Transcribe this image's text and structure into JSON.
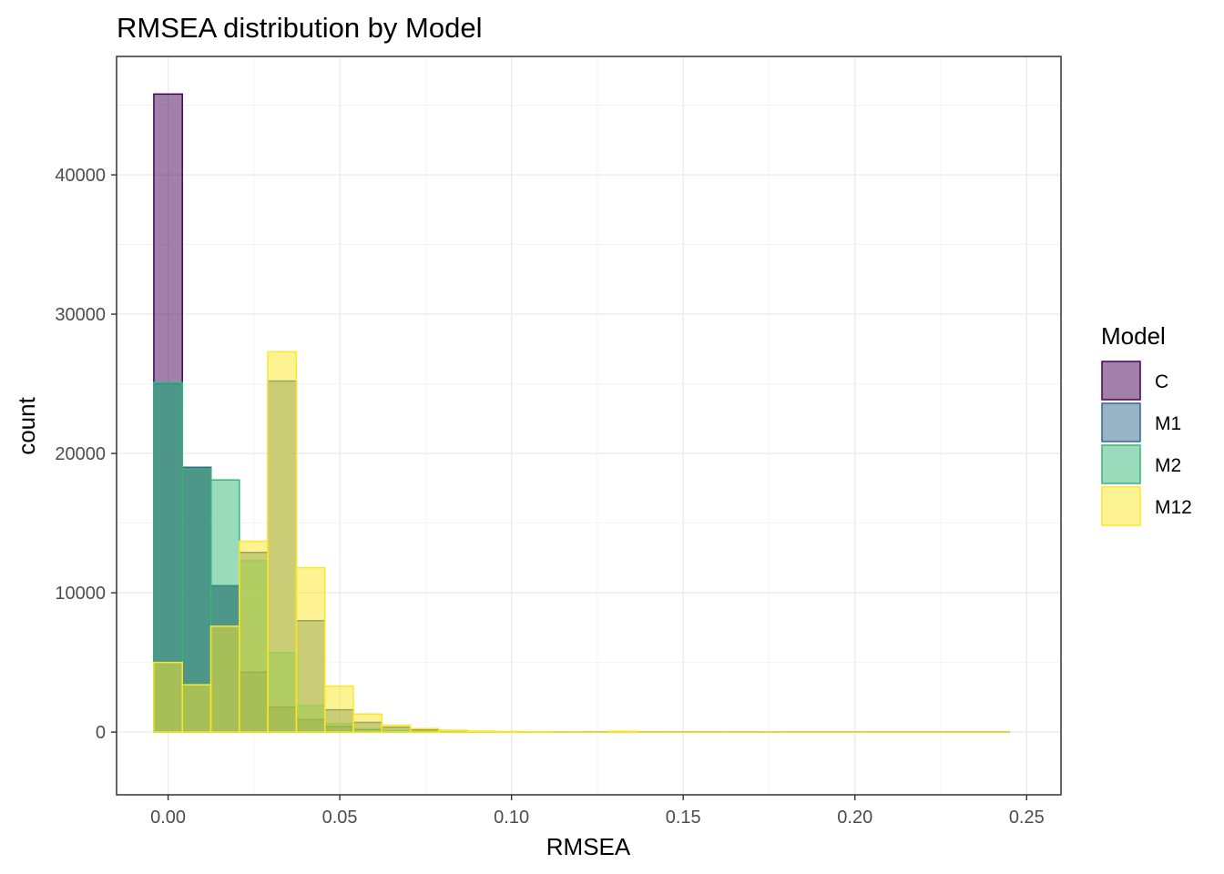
{
  "chart_data": {
    "type": "bar",
    "title": "RMSEA distribution by Model",
    "xlabel": "RMSEA",
    "ylabel": "count",
    "xlim": [
      -0.015,
      0.26
    ],
    "ylim": [
      -4500,
      48500
    ],
    "x_ticks": [
      0.0,
      0.05,
      0.1,
      0.15,
      0.2,
      0.25
    ],
    "x_tick_labels": [
      "0.00",
      "0.05",
      "0.10",
      "0.15",
      "0.20",
      "0.25"
    ],
    "y_ticks": [
      0,
      10000,
      20000,
      30000,
      40000
    ],
    "y_tick_labels": [
      "0",
      "10000",
      "20000",
      "30000",
      "40000"
    ],
    "grid": true,
    "legend": {
      "title": "Model",
      "placement": "right"
    },
    "bin_width": 0.0083,
    "bin_centers": [
      0.0,
      0.0083,
      0.0166,
      0.0249,
      0.0332,
      0.0415,
      0.0498,
      0.0581,
      0.0664,
      0.0747,
      0.083,
      0.0913,
      0.0996,
      0.1079,
      0.1162,
      0.1245,
      0.1328,
      0.1411,
      0.1494,
      0.1577,
      0.166,
      0.1743,
      0.1826,
      0.1909,
      0.1992,
      0.2075,
      0.2158,
      0.2241,
      0.2324,
      0.2407
    ],
    "series": [
      {
        "name": "C",
        "fill": "#440154",
        "stroke": "#440154",
        "values": [
          45800,
          19000,
          10500,
          4300,
          1800,
          900,
          400,
          200,
          120,
          70,
          40,
          25,
          15,
          10,
          8,
          6,
          5,
          4,
          3,
          2,
          2,
          1,
          1,
          1,
          1,
          1,
          1,
          1,
          1,
          1
        ]
      },
      {
        "name": "M1",
        "fill": "#31688E",
        "stroke": "#31688E",
        "values": [
          25000,
          19000,
          10500,
          12900,
          25200,
          8000,
          1600,
          700,
          350,
          180,
          90,
          50,
          30,
          20,
          12,
          8,
          6,
          4,
          3,
          2,
          2,
          1,
          1,
          1,
          1,
          1,
          1,
          1,
          1,
          1
        ]
      },
      {
        "name": "M2",
        "fill": "#35B779",
        "stroke": "#35B779",
        "values": [
          25100,
          18900,
          18100,
          12300,
          5700,
          1900,
          600,
          250,
          120,
          60,
          30,
          20,
          10,
          8,
          5,
          4,
          3,
          2,
          2,
          1,
          1,
          1,
          1,
          1,
          1,
          1,
          1,
          1,
          1,
          1
        ]
      },
      {
        "name": "M12",
        "fill": "#FDE725",
        "stroke": "#FDE725",
        "values": [
          5000,
          3400,
          7600,
          13700,
          27300,
          11800,
          3300,
          1300,
          500,
          250,
          130,
          70,
          40,
          25,
          15,
          10,
          60,
          8,
          5,
          4,
          3,
          3,
          2,
          2,
          2,
          1,
          1,
          1,
          1,
          1
        ]
      }
    ]
  }
}
